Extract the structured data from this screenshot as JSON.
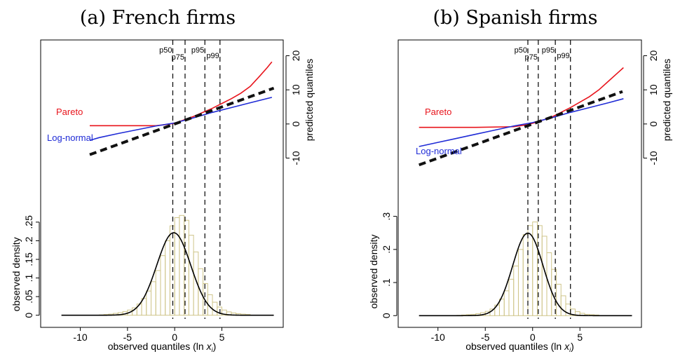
{
  "chart_data": [
    {
      "type": "line",
      "panel_title": "(a) French firms",
      "xlabel": "observed quantiles (ln x_i)",
      "xlim": [
        -14.2,
        11.5
      ],
      "xticks": [
        -10,
        -5,
        0,
        5
      ],
      "xtick_labels": [
        "-10",
        "-5",
        "0",
        "5"
      ],
      "percentiles": [
        {
          "label": "p50",
          "x": -0.2
        },
        {
          "label": "p75",
          "x": 1.1
        },
        {
          "label": "p95",
          "x": 3.2
        },
        {
          "label": "p99",
          "x": 4.8
        }
      ],
      "qq": {
        "ylabel": "predicted quantiles",
        "ylim": [
          -14,
          24
        ],
        "yticks": [
          -10,
          0,
          10,
          20
        ],
        "ytick_labels": [
          "-10",
          "0",
          "10",
          "20"
        ],
        "reference_line": {
          "name": "45-degree line",
          "x": [
            -9,
            10.5
          ],
          "y": [
            -9,
            10.5
          ]
        },
        "series": [
          {
            "name": "Pareto",
            "color": "#e8141c",
            "points": [
              [
                -9,
                -0.5
              ],
              [
                -5,
                -0.5
              ],
              [
                -2,
                -0.5
              ],
              [
                -1,
                -0.2
              ],
              [
                0,
                0.2
              ],
              [
                1,
                1.2
              ],
              [
                2,
                2.2
              ],
              [
                3,
                3.4
              ],
              [
                4,
                4.6
              ],
              [
                5,
                6.0
              ],
              [
                6,
                7.4
              ],
              [
                7,
                9.0
              ],
              [
                8,
                11.0
              ],
              [
                9,
                14.0
              ],
              [
                9.8,
                16.5
              ],
              [
                10.3,
                18.2
              ]
            ]
          },
          {
            "name": "Log-normal",
            "color": "#1f2bd6",
            "points": [
              [
                -9,
                -4.8
              ],
              [
                -8,
                -4.0
              ],
              [
                -6,
                -2.8
              ],
              [
                -4,
                -1.7
              ],
              [
                -2,
                -0.6
              ],
              [
                0,
                0.3
              ],
              [
                2,
                1.8
              ],
              [
                4,
                3.4
              ],
              [
                6,
                4.8
              ],
              [
                8,
                6.2
              ],
              [
                10.3,
                7.8
              ]
            ]
          }
        ]
      },
      "density": {
        "ylabel": "observed density",
        "ylim": [
          -0.01,
          0.31
        ],
        "yticks": [
          0,
          0.05,
          0.1,
          0.15,
          0.2,
          0.25
        ],
        "ytick_labels": [
          "0",
          ".05",
          ".1",
          ".15",
          ".2",
          ".25"
        ],
        "histogram": {
          "bin_start": -8,
          "bin_width": 0.5,
          "color": "#cfc58a",
          "values": [
            0.001,
            0.002,
            0.003,
            0.005,
            0.007,
            0.01,
            0.014,
            0.02,
            0.03,
            0.045,
            0.065,
            0.09,
            0.12,
            0.16,
            0.2,
            0.24,
            0.262,
            0.268,
            0.255,
            0.215,
            0.17,
            0.125,
            0.085,
            0.055,
            0.035,
            0.022,
            0.014,
            0.009,
            0.006,
            0.004,
            0.003,
            0.002
          ]
        },
        "normal_fit": {
          "mean": -0.1,
          "sd": 1.8,
          "color": "#000000",
          "x_range": [
            -12,
            10.5
          ]
        }
      }
    },
    {
      "type": "line",
      "panel_title": "(b) Spanish firms",
      "xlabel": "observed quantiles (ln x_i)",
      "xlim": [
        -14.2,
        11.5
      ],
      "xticks": [
        -10,
        -5,
        0,
        5
      ],
      "xtick_labels": [
        "-10",
        "-5",
        "0",
        "5"
      ],
      "percentiles": [
        {
          "label": "p50",
          "x": -0.5
        },
        {
          "label": "p75",
          "x": 0.6
        },
        {
          "label": "p95",
          "x": 2.4
        },
        {
          "label": "p99",
          "x": 4.0
        }
      ],
      "qq": {
        "ylabel": "predicted quantiles",
        "ylim": [
          -14,
          24
        ],
        "yticks": [
          -10,
          0,
          10,
          20
        ],
        "ytick_labels": [
          "-10",
          "0",
          "10",
          "20"
        ],
        "reference_line": {
          "name": "45-degree line",
          "x": [
            -12,
            9.5
          ],
          "y": [
            -12,
            9.5
          ]
        },
        "series": [
          {
            "name": "Pareto",
            "color": "#e8141c",
            "points": [
              [
                -12,
                -1.0
              ],
              [
                -6,
                -1.0
              ],
              [
                -2,
                -0.8
              ],
              [
                -0.5,
                -0.2
              ],
              [
                0.5,
                0.6
              ],
              [
                2,
                2.0
              ],
              [
                3,
                3.4
              ],
              [
                4,
                4.8
              ],
              [
                5,
                6.4
              ],
              [
                6,
                8.0
              ],
              [
                7,
                10.0
              ],
              [
                8,
                12.5
              ],
              [
                9,
                15.0
              ],
              [
                9.6,
                16.5
              ]
            ]
          },
          {
            "name": "Log-normal",
            "color": "#1f2bd6",
            "points": [
              [
                -12,
                -6.6
              ],
              [
                -10,
                -5.4
              ],
              [
                -8,
                -4.2
              ],
              [
                -6,
                -3.0
              ],
              [
                -4,
                -1.8
              ],
              [
                -2,
                -0.6
              ],
              [
                0,
                0.4
              ],
              [
                2,
                1.8
              ],
              [
                4,
                3.4
              ],
              [
                6,
                4.8
              ],
              [
                8,
                6.2
              ],
              [
                9.6,
                7.4
              ]
            ]
          }
        ]
      },
      "density": {
        "ylabel": "observed density",
        "ylim": [
          -0.01,
          0.35
        ],
        "yticks": [
          0,
          0.1,
          0.2,
          0.3
        ],
        "ytick_labels": [
          "0",
          ".1",
          ".2",
          ".3"
        ],
        "histogram": {
          "bin_start": -8,
          "bin_width": 0.5,
          "color": "#cfc58a",
          "values": [
            0.001,
            0.002,
            0.003,
            0.004,
            0.006,
            0.009,
            0.013,
            0.02,
            0.032,
            0.05,
            0.075,
            0.11,
            0.15,
            0.2,
            0.245,
            0.272,
            0.283,
            0.272,
            0.24,
            0.19,
            0.14,
            0.095,
            0.06,
            0.035,
            0.02,
            0.012,
            0.007,
            0.004,
            0.003,
            0.002
          ]
        },
        "normal_fit": {
          "mean": -0.5,
          "sd": 1.6,
          "color": "#000000",
          "x_range": [
            -12,
            10.5
          ]
        }
      }
    }
  ]
}
